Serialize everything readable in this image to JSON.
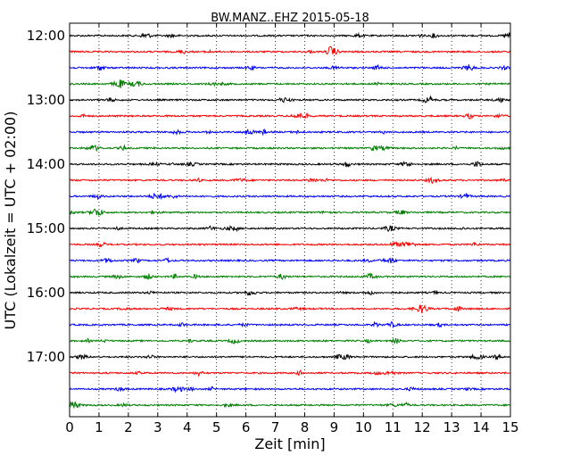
{
  "chart_data": {
    "type": "line",
    "title": "BW.MANZ..EHZ 2015-05-18",
    "xlabel": "Zeit  [min]",
    "ylabel": "UTC (Lokalzeit = UTC + 02:00)",
    "xlim": [
      0,
      15
    ],
    "x_ticks": [
      "0",
      "1",
      "2",
      "3",
      "4",
      "5",
      "6",
      "7",
      "8",
      "9",
      "10",
      "11",
      "12",
      "13",
      "14",
      "15"
    ],
    "y_ticks": [
      "12:00",
      "13:00",
      "14:00",
      "15:00",
      "16:00",
      "17:00"
    ],
    "grid": "x-dotted",
    "trace_interval_min": 15,
    "start_time": "12:00",
    "trace_colors": [
      "#000000",
      "#ff0000",
      "#0000ff",
      "#007f00"
    ],
    "traces": [
      {
        "start": "12:00",
        "color": "#000000"
      },
      {
        "start": "12:15",
        "color": "#ff0000"
      },
      {
        "start": "12:30",
        "color": "#0000ff"
      },
      {
        "start": "12:45",
        "color": "#007f00"
      },
      {
        "start": "13:00",
        "color": "#000000"
      },
      {
        "start": "13:15",
        "color": "#ff0000"
      },
      {
        "start": "13:30",
        "color": "#0000ff"
      },
      {
        "start": "13:45",
        "color": "#007f00"
      },
      {
        "start": "14:00",
        "color": "#000000"
      },
      {
        "start": "14:15",
        "color": "#ff0000"
      },
      {
        "start": "14:30",
        "color": "#0000ff"
      },
      {
        "start": "14:45",
        "color": "#007f00"
      },
      {
        "start": "15:00",
        "color": "#000000"
      },
      {
        "start": "15:15",
        "color": "#ff0000"
      },
      {
        "start": "15:30",
        "color": "#0000ff"
      },
      {
        "start": "15:45",
        "color": "#007f00"
      },
      {
        "start": "16:00",
        "color": "#000000"
      },
      {
        "start": "16:15",
        "color": "#ff0000"
      },
      {
        "start": "16:30",
        "color": "#0000ff"
      },
      {
        "start": "16:45",
        "color": "#007f00"
      },
      {
        "start": "17:00",
        "color": "#000000"
      },
      {
        "start": "17:15",
        "color": "#ff0000"
      },
      {
        "start": "17:30",
        "color": "#0000ff"
      },
      {
        "start": "17:45",
        "color": "#007f00"
      }
    ]
  }
}
